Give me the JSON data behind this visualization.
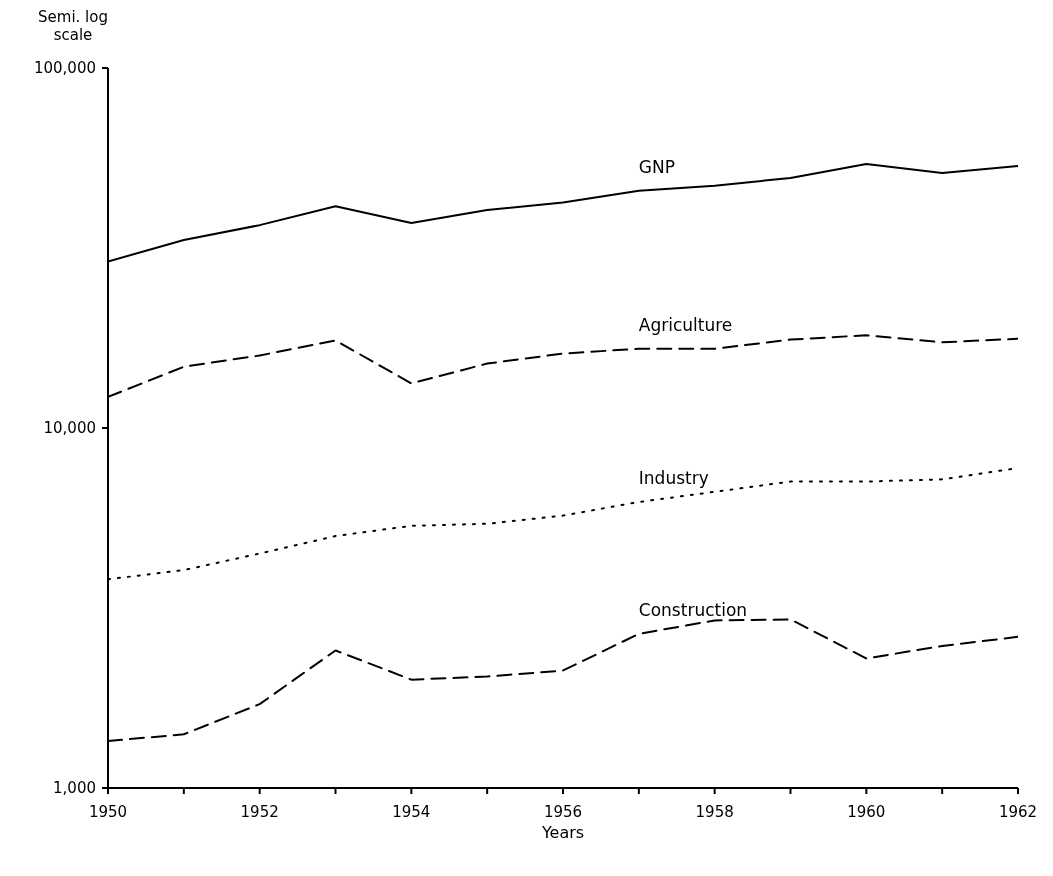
{
  "chart_data": {
    "type": "line",
    "ylabel": "Semi. log scale",
    "xlabel": "Years",
    "log": "y",
    "grid": false,
    "legend": false,
    "marker": "none",
    "x": [
      1950,
      1951,
      1952,
      1953,
      1954,
      1955,
      1956,
      1957,
      1958,
      1959,
      1960,
      1961,
      1962
    ],
    "xlim": [
      1950,
      1962
    ],
    "xticks": [
      1950,
      {
        "value": 1951,
        "label": null
      },
      1952,
      {
        "value": 1953,
        "label": null
      },
      1954,
      {
        "value": 1955,
        "label": null
      },
      1956,
      {
        "value": 1957,
        "label": null
      },
      1958,
      {
        "value": 1959,
        "label": null
      },
      1960,
      {
        "value": 1961,
        "label": null
      },
      1962
    ],
    "ylim": [
      1000,
      100000
    ],
    "yticks": [
      {
        "value": 1000,
        "label": "1,000"
      },
      {
        "value": 10000,
        "label": "10,000"
      },
      {
        "value": 100000,
        "label": "100,000"
      }
    ],
    "series": [
      {
        "name": "GNP",
        "color": "#000000",
        "line_style": "solid",
        "values": [
          29000,
          33300,
          36600,
          41300,
          37100,
          40300,
          42300,
          45600,
          47100,
          49500,
          54100,
          51100,
          53400
        ]
      },
      {
        "name": "Agriculture",
        "color": "#000000",
        "line_style": "dashed",
        "values": [
          12200,
          14800,
          15900,
          17500,
          13300,
          15100,
          16100,
          16600,
          16600,
          17600,
          18100,
          17300,
          17700
        ]
      },
      {
        "name": "Industry",
        "color": "#000000",
        "line_style": "dotted",
        "values": [
          3800,
          4030,
          4480,
          5010,
          5350,
          5420,
          5710,
          6230,
          6650,
          7100,
          7100,
          7200,
          7740
        ]
      },
      {
        "name": "Construction",
        "color": "#000000",
        "line_style": "dashed",
        "values": [
          1350,
          1410,
          1710,
          2410,
          2000,
          2040,
          2120,
          2680,
          2920,
          2940,
          2290,
          2480,
          2630
        ]
      }
    ]
  }
}
